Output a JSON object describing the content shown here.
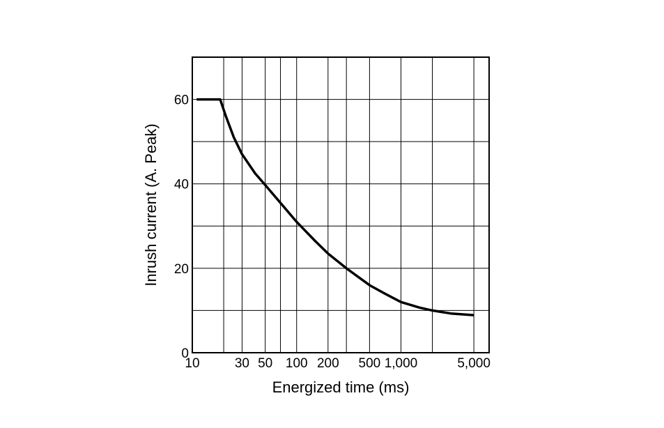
{
  "chart_data": {
    "type": "line",
    "title": "",
    "xlabel": "Energized time (ms)",
    "ylabel": "Inrush current (A. Peak)",
    "x_scale": "log",
    "xlim": [
      10,
      7000
    ],
    "ylim": [
      0,
      70
    ],
    "grid": true,
    "x_ticks": [
      {
        "value": 10,
        "label": "10"
      },
      {
        "value": 30,
        "label": "30"
      },
      {
        "value": 50,
        "label": "50"
      },
      {
        "value": 100,
        "label": "100"
      },
      {
        "value": 200,
        "label": "200"
      },
      {
        "value": 500,
        "label": "500"
      },
      {
        "value": 1000,
        "label": "1,000"
      },
      {
        "value": 5000,
        "label": "5,000"
      }
    ],
    "x_gridlines": [
      20,
      30,
      50,
      70,
      100,
      200,
      300,
      500,
      1000,
      2000,
      5000
    ],
    "y_ticks": [
      {
        "value": 0,
        "label": "0"
      },
      {
        "value": 20,
        "label": "20"
      },
      {
        "value": 40,
        "label": "40"
      },
      {
        "value": 60,
        "label": "60"
      }
    ],
    "y_gridlines": [
      10,
      20,
      30,
      40,
      50,
      60
    ],
    "series": [
      {
        "color": "#000000",
        "points": [
          {
            "x": 11,
            "y": 60
          },
          {
            "x": 18.5,
            "y": 60
          },
          {
            "x": 21,
            "y": 56
          },
          {
            "x": 25,
            "y": 51
          },
          {
            "x": 30,
            "y": 47
          },
          {
            "x": 40,
            "y": 42.5
          },
          {
            "x": 50,
            "y": 39.7
          },
          {
            "x": 70,
            "y": 35.5
          },
          {
            "x": 100,
            "y": 31
          },
          {
            "x": 150,
            "y": 26.5
          },
          {
            "x": 200,
            "y": 23.5
          },
          {
            "x": 300,
            "y": 20
          },
          {
            "x": 500,
            "y": 16
          },
          {
            "x": 700,
            "y": 14
          },
          {
            "x": 1000,
            "y": 12
          },
          {
            "x": 1500,
            "y": 10.7
          },
          {
            "x": 2000,
            "y": 10
          },
          {
            "x": 3000,
            "y": 9.3
          },
          {
            "x": 5000,
            "y": 8.9
          }
        ]
      }
    ]
  }
}
